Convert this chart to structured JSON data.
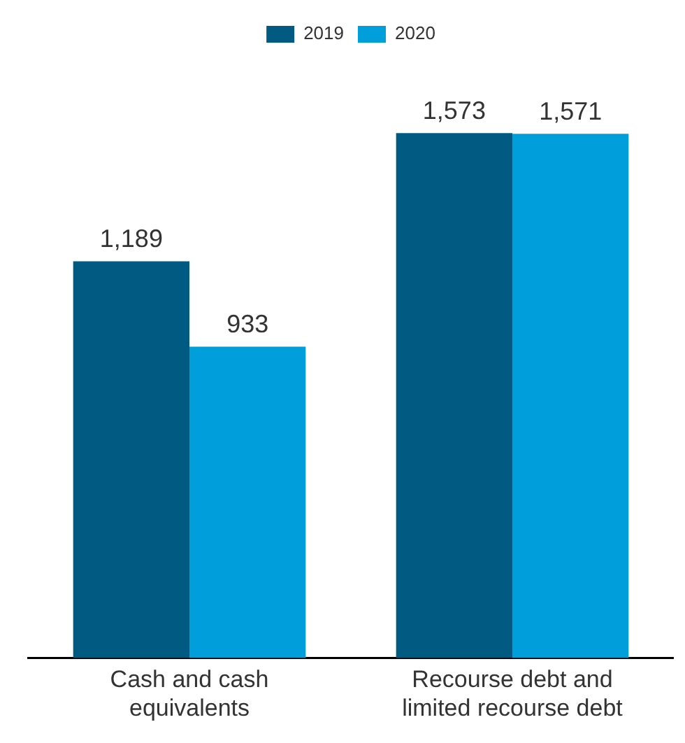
{
  "chart_data": {
    "type": "bar",
    "categories": [
      "Cash and cash equivalents",
      "Recourse debt and limited recourse debt"
    ],
    "series": [
      {
        "name": "2019",
        "color": "#005a82",
        "values": [
          1189,
          1573
        ],
        "value_labels": [
          "1,189",
          "1,573"
        ]
      },
      {
        "name": "2020",
        "color": "#009fdb",
        "values": [
          933,
          1571
        ],
        "value_labels": [
          "933",
          "1,571"
        ]
      }
    ],
    "legend": "top",
    "grid": false,
    "tick_labels": "x"
  }
}
